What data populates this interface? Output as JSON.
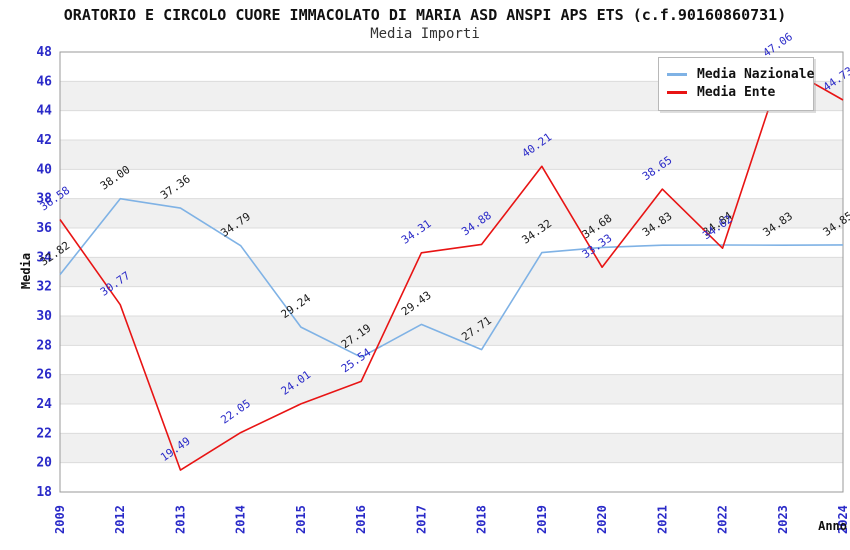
{
  "header": {
    "title": "ORATORIO E CIRCOLO CUORE IMMACOLATO DI MARIA ASD ANSPI APS ETS (c.f.90160860731)",
    "subtitle": "Media Importi"
  },
  "axes": {
    "y_title": "Media",
    "x_title": "Anno"
  },
  "legend": {
    "items": [
      {
        "label": "Media Nazionale",
        "color": "#7fb2e5"
      },
      {
        "label": "Media Ente",
        "color": "#e81414"
      }
    ]
  },
  "chart_data": {
    "type": "line",
    "title": "ORATORIO E CIRCOLO CUORE IMMACOLATO DI MARIA ASD ANSPI APS ETS (c.f.90160860731)",
    "subtitle": "Media Importi",
    "xlabel": "Anno",
    "ylabel": "Media",
    "categories": [
      "2009",
      "2012",
      "2013",
      "2014",
      "2015",
      "2016",
      "2017",
      "2018",
      "2019",
      "2020",
      "2021",
      "2022",
      "2023",
      "2024"
    ],
    "series": [
      {
        "name": "Media Nazionale",
        "color": "#7fb2e5",
        "label_color": "#1a1a1a",
        "values": [
          32.82,
          38.0,
          37.36,
          34.79,
          29.24,
          27.19,
          29.43,
          27.71,
          34.32,
          34.68,
          34.83,
          34.84,
          34.83,
          34.85
        ]
      },
      {
        "name": "Media Ente",
        "color": "#e81414",
        "label_color": "#2a2ac8",
        "values": [
          36.58,
          30.77,
          19.49,
          22.05,
          24.01,
          25.54,
          34.31,
          34.88,
          40.21,
          33.33,
          38.65,
          34.62,
          47.06,
          44.73
        ]
      }
    ],
    "ylim": [
      18,
      48
    ],
    "ytick_step": 2,
    "grid": "horizontal-bands",
    "band_colors": [
      "#ffffff",
      "#f0f0f0"
    ],
    "gridline_color": "#dcdcdc",
    "plot_border_color": "#9a9a9a",
    "tick_label_color": "#2a2ac8",
    "legend_position": "top-right"
  }
}
